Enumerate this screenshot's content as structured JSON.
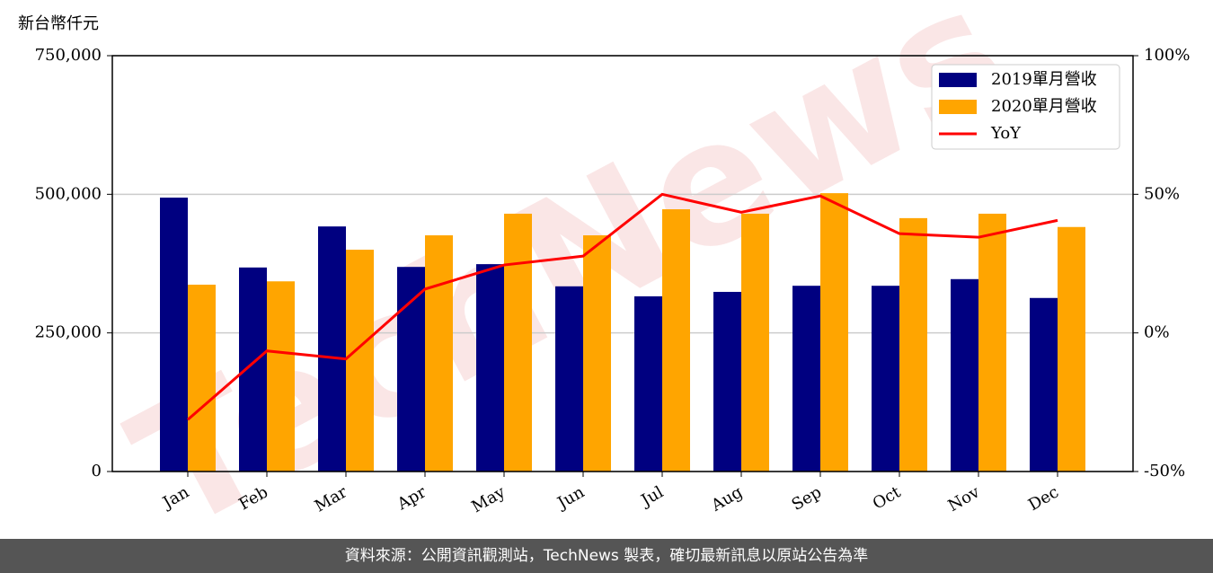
{
  "chart_data": {
    "type": "bar-line",
    "y_label": "新台幣仟元",
    "watermark": "TechNews",
    "categories": [
      "Jan",
      "Feb",
      "Mar",
      "Apr",
      "May",
      "Jun",
      "Jul",
      "Aug",
      "Sep",
      "Oct",
      "Nov",
      "Dec"
    ],
    "series": [
      {
        "name": "2019單月營收",
        "color": "#000080",
        "type": "bar",
        "values": [
          494000,
          368000,
          442000,
          369000,
          374000,
          334000,
          316000,
          324000,
          335000,
          335000,
          347000,
          313000
        ]
      },
      {
        "name": "2020單月營收",
        "color": "#ffa500",
        "type": "bar",
        "values": [
          337000,
          343000,
          400000,
          426000,
          465000,
          426000,
          473000,
          465000,
          502000,
          457000,
          465000,
          441000
        ]
      },
      {
        "name": "YoY",
        "color": "#ff0000",
        "type": "line",
        "axis": "y2",
        "values": [
          -31.3,
          -6.5,
          -9.4,
          15.8,
          24.5,
          27.7,
          50,
          43.5,
          49.4,
          35.8,
          34.5,
          40.6
        ]
      }
    ],
    "ylim": [
      0,
      750000
    ],
    "yticks": [
      0,
      {
        "value": 250000,
        "label": "250,000"
      },
      {
        "value": 500000,
        "label": "500,000"
      },
      {
        "value": 750000,
        "label": "750,000"
      }
    ],
    "y2lim": [
      -50,
      100
    ],
    "y2ticks": [
      {
        "value": -50,
        "label": "-50%"
      },
      {
        "value": 0,
        "label": "0%"
      },
      {
        "value": 50,
        "label": "50%"
      },
      {
        "value": 100,
        "label": "100%"
      }
    ],
    "grid": true,
    "legend": "upper right"
  },
  "footer": "資料來源：公開資訊觀測站，TechNews 製表，確切最新訊息以原站公告為準"
}
